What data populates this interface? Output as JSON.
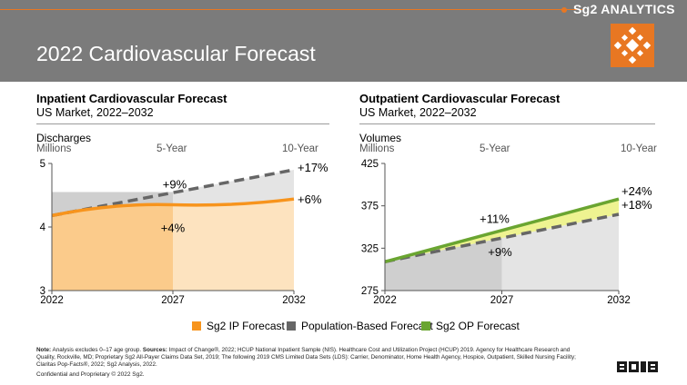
{
  "brand": "Sg2 ANALYTICS",
  "page_title": "2022 Cardiovascular Forecast",
  "colors": {
    "header_bg": "#7b7b7b",
    "accent_orange": "#e87722",
    "ip_line": "#f7941d",
    "ip_fill_dark": "#fbcb8b",
    "ip_fill_light": "#fde3bf",
    "op_line": "#6aa531",
    "op_band": "#eef391",
    "pop_line": "#666666",
    "pop_fill": "#e4e4e4",
    "pop_fill_dark": "#cfcfcf"
  },
  "left_panel": {
    "title": "Inpatient Cardiovascular Forecast",
    "subtitle": "US Market, 2022–2032",
    "axis_name": "Discharges",
    "axis_unit": "Millions",
    "period_mid": "5-Year",
    "period_end": "10-Year"
  },
  "right_panel": {
    "title": "Outpatient Cardiovascular Forecast",
    "subtitle": "US Market, 2022–2032",
    "axis_name": "Volumes",
    "axis_unit": "Millions",
    "period_mid": "5-Year",
    "period_end": "10-Year"
  },
  "legend": {
    "ip": "Sg2 IP Forecast",
    "pop": "Population-Based Forecast",
    "op": "Sg2 OP Forecast"
  },
  "note": {
    "label": "Note:",
    "text": " Analysis excludes 0–17 age group. ",
    "sources_label": "Sources:",
    "sources_text": " Impact of Change®, 2022; HCUP National Inpatient Sample (NIS). Healthcare Cost and Utilization Project (HCUP) 2019. Agency for Healthcare Research and Quality, Rockville, MD; Proprietary Sg2 All-Payer Claims Data Set, 2019; The following 2019 CMS Limited Data Sets (LDS): Carrier, Denominator, Home Health Agency, Hospice, Outpatient, Skilled Nursing Facility; Claritas Pop-Facts®, 2022; Sg2 Analysis, 2022."
  },
  "confidential": "Confidential and Proprietary © 2022 Sg2.",
  "chart_data": [
    {
      "type": "area",
      "title": "Inpatient Cardiovascular Forecast",
      "ylabel": "Discharges",
      "yunit": "Millions",
      "ylim": [
        3,
        5
      ],
      "yticks": [
        "3",
        "4",
        "5"
      ],
      "x": [
        2022,
        2027,
        2032
      ],
      "xticks": [
        "2022",
        "2027",
        "2032"
      ],
      "series": [
        {
          "name": "Sg2 IP Forecast",
          "values": [
            4.18,
            4.35,
            4.44
          ]
        },
        {
          "name": "Population-Based Forecast",
          "values": [
            4.18,
            4.55,
            4.9
          ]
        }
      ],
      "annotations": [
        {
          "text": "+9%",
          "x": 2027,
          "series": "Population-Based Forecast"
        },
        {
          "text": "+17%",
          "x": 2032,
          "series": "Population-Based Forecast"
        },
        {
          "text": "+4%",
          "x": 2027,
          "series": "Sg2 IP Forecast"
        },
        {
          "text": "+6%",
          "x": 2032,
          "series": "Sg2 IP Forecast"
        }
      ]
    },
    {
      "type": "area",
      "title": "Outpatient Cardiovascular Forecast",
      "ylabel": "Volumes",
      "yunit": "Millions",
      "ylim": [
        275,
        425
      ],
      "yticks": [
        "275",
        "325",
        "375",
        "425"
      ],
      "x": [
        2022,
        2027,
        2032
      ],
      "xticks": [
        "2022",
        "2027",
        "2032"
      ],
      "series": [
        {
          "name": "Sg2 OP Forecast",
          "values": [
            309,
            342,
            383
          ]
        },
        {
          "name": "Population-Based Forecast",
          "values": [
            309,
            337,
            365
          ]
        }
      ],
      "annotations": [
        {
          "text": "+11%",
          "x": 2027,
          "series": "Sg2 OP Forecast"
        },
        {
          "text": "+24%",
          "x": 2032,
          "series": "Sg2 OP Forecast"
        },
        {
          "text": "+9%",
          "x": 2027,
          "series": "Population-Based Forecast"
        },
        {
          "text": "+18%",
          "x": 2032,
          "series": "Population-Based Forecast"
        }
      ]
    }
  ]
}
